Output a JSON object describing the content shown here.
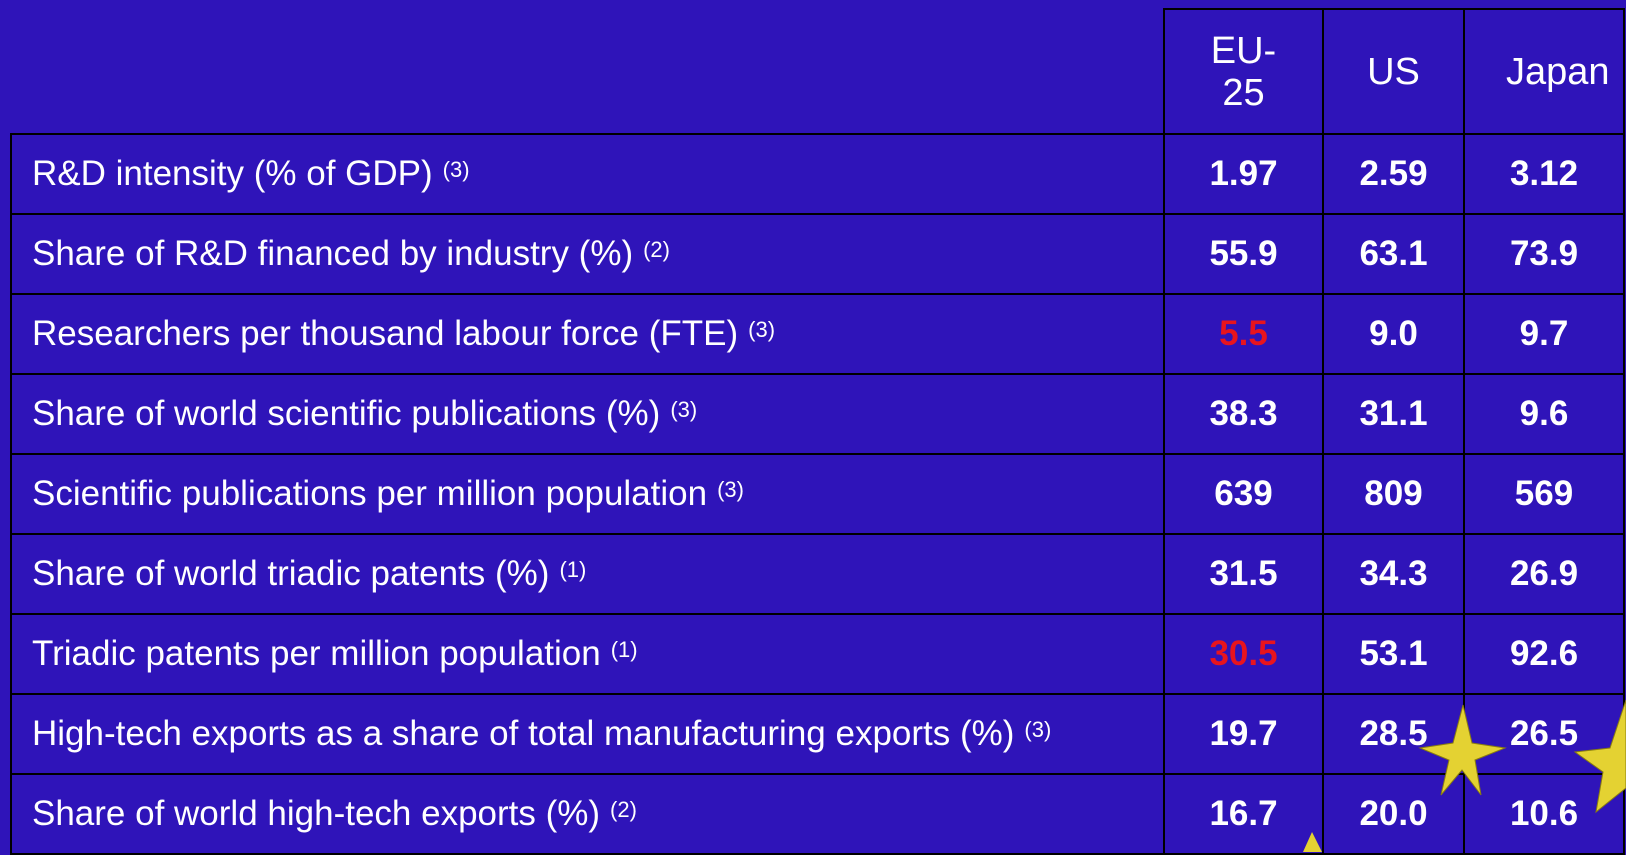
{
  "table": {
    "columns": [
      "EU-25",
      "US",
      "Japan"
    ],
    "rows": [
      {
        "label": "R&D intensity (% of GDP)",
        "note": "(3)",
        "values": [
          "1.97",
          "2.59",
          "3.12"
        ],
        "highlight": [
          false,
          false,
          false
        ]
      },
      {
        "label": "Share of R&D financed by industry (%)",
        "note": "(2)",
        "values": [
          "55.9",
          "63.1",
          "73.9"
        ],
        "highlight": [
          false,
          false,
          false
        ]
      },
      {
        "label": "Researchers per thousand labour force (FTE)",
        "note": "(3)",
        "values": [
          "5.5",
          "9.0",
          "9.7"
        ],
        "highlight": [
          true,
          false,
          false
        ]
      },
      {
        "label": "Share of world scientific publications (%)",
        "note": "(3)",
        "values": [
          "38.3",
          "31.1",
          "9.6"
        ],
        "highlight": [
          false,
          false,
          false
        ]
      },
      {
        "label": "Scientific publications per million population",
        "note": "(3)",
        "values": [
          "639",
          "809",
          "569"
        ],
        "highlight": [
          false,
          false,
          false
        ]
      },
      {
        "label": "Share of world triadic patents (%)",
        "note": "(1)",
        "values": [
          "31.5",
          "34.3",
          "26.9"
        ],
        "highlight": [
          false,
          false,
          false
        ]
      },
      {
        "label": "Triadic patents per million population",
        "note": "(1)",
        "values": [
          "30.5",
          "53.1",
          "92.6"
        ],
        "highlight": [
          true,
          false,
          false
        ]
      },
      {
        "label": "High-tech exports as a share of total manufacturing exports (%)",
        "note": "(3)",
        "values": [
          "19.7",
          "28.5",
          "26.5"
        ],
        "highlight": [
          false,
          false,
          false
        ]
      },
      {
        "label": "Share of world high-tech exports (%)",
        "note": "(2)",
        "values": [
          "16.7",
          "20.0",
          "10.6"
        ],
        "highlight": [
          false,
          false,
          false
        ]
      }
    ]
  }
}
